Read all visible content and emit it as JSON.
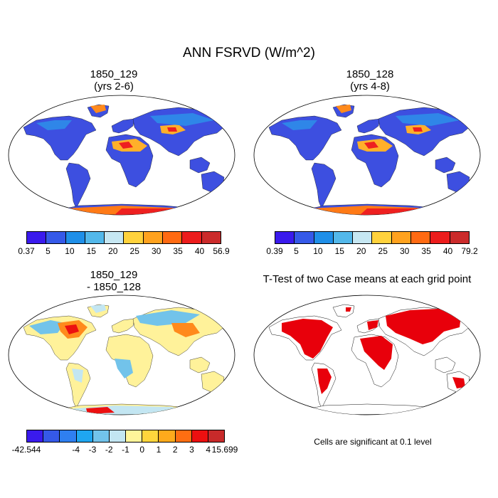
{
  "figure": {
    "title": "ANN FSRVD (W/m^2)"
  },
  "panels": {
    "top_left": {
      "title_line1": "1850_129",
      "title_line2": "(yrs 2-6)",
      "colorbar": {
        "labels": [
          "0.37",
          "5",
          "10",
          "15",
          "20",
          "25",
          "30",
          "35",
          "40",
          "56.9"
        ],
        "colors": [
          "#3a1aed",
          "#3559e8",
          "#1f8fe8",
          "#53b8ea",
          "#c6e7f2",
          "#ffd23c",
          "#ffa21e",
          "#ff6a12",
          "#ec1c1c",
          "#cb2b2b"
        ]
      }
    },
    "top_right": {
      "title_line1": "1850_128",
      "title_line2": "(yrs 4-8)",
      "colorbar": {
        "labels": [
          "0.39",
          "5",
          "10",
          "15",
          "20",
          "25",
          "30",
          "35",
          "40",
          "79.2"
        ],
        "colors": [
          "#3a1aed",
          "#3559e8",
          "#1f8fe8",
          "#53b8ea",
          "#c6e7f2",
          "#ffd23c",
          "#ffa21e",
          "#ff6a12",
          "#ec1c1c",
          "#cb2b2b"
        ]
      }
    },
    "bottom_left": {
      "title_line1": "1850_129",
      "title_line2": "- 1850_128",
      "colorbar": {
        "labels": [
          "-42.544",
          "-4",
          "-3",
          "-2",
          "-1",
          "0",
          "1",
          "2",
          "3",
          "4",
          "15.699"
        ],
        "colors": [
          "#3a1aed",
          "#3559e8",
          "#2f7ff0",
          "#1fa6f0",
          "#72c3ea",
          "#c3e6f2",
          "#fff59a",
          "#ffd63c",
          "#ffaa1c",
          "#ff6e12",
          "#ec1010",
          "#c82a2a"
        ]
      }
    },
    "bottom_right": {
      "title": "T-Test of two Case means at each grid point",
      "note": "Cells are significant at 0.1 level",
      "significant_color": "#e8000b"
    }
  }
}
